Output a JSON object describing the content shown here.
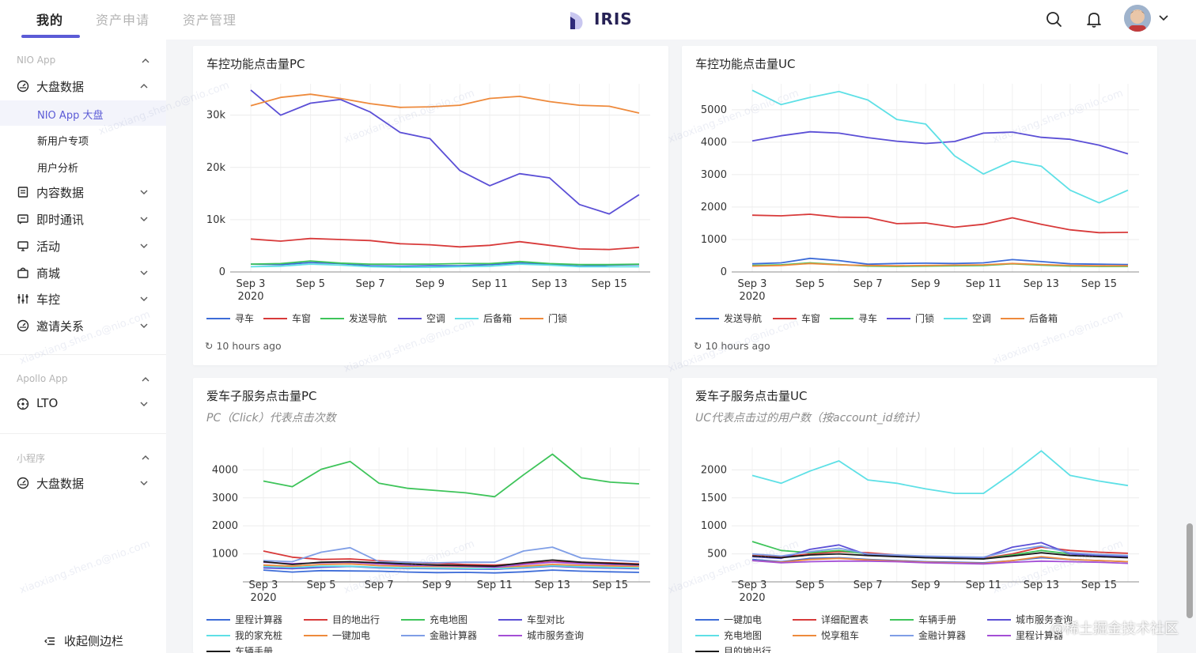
{
  "header": {
    "tabs": [
      {
        "label": "我的"
      },
      {
        "label": "资产申请"
      },
      {
        "label": "资产管理"
      }
    ],
    "brand": "IRIS",
    "icons": [
      "search-icon",
      "bell-icon",
      "avatar",
      "chevron-down-icon"
    ]
  },
  "sidebar": {
    "groups": [
      {
        "label": "NIO App"
      },
      {
        "label": "Apollo App"
      },
      {
        "label": "小程序"
      }
    ],
    "items": [
      {
        "label": "大盘数据",
        "icon": "dashboard-icon"
      },
      {
        "label": "内容数据",
        "icon": "document-icon"
      },
      {
        "label": "即时通讯",
        "icon": "message-icon"
      },
      {
        "label": "活动",
        "icon": "monitor-icon"
      },
      {
        "label": "商城",
        "icon": "shop-icon"
      },
      {
        "label": "车控",
        "icon": "control-icon"
      },
      {
        "label": "邀请关系",
        "icon": "dashboard-icon"
      },
      {
        "label": "LTO",
        "icon": "target-icon"
      },
      {
        "label": "大盘数据",
        "icon": "dashboard-icon"
      }
    ],
    "subitems": [
      {
        "label": "NIO App 大盘"
      },
      {
        "label": "新用户专项"
      },
      {
        "label": "用户分析"
      }
    ],
    "collapse_label": "收起侧边栏"
  },
  "cards": [
    {
      "title": "车控功能点击量PC",
      "subtitle": "",
      "updated": "10 hours ago"
    },
    {
      "title": "车控功能点击量UC",
      "subtitle": "",
      "updated": "10 hours ago"
    },
    {
      "title": "爱车子服务点击量PC",
      "subtitle": "PC（Click）代表点击次数",
      "updated": ""
    },
    {
      "title": "爱车子服务点击量UC",
      "subtitle": "UC代表点击过的用户数（按account_id统计）",
      "updated": ""
    }
  ],
  "watermark": "@稀土掘金技术社区",
  "bg_watermark": "xiaoxiang.shen.o@nio.com",
  "chart_data": [
    {
      "type": "line",
      "title": "车控功能点击量PC",
      "x": [
        "Sep 3",
        "Sep 4",
        "Sep 5",
        "Sep 6",
        "Sep 7",
        "Sep 8",
        "Sep 9",
        "Sep 10",
        "Sep 11",
        "Sep 12",
        "Sep 13",
        "Sep 14",
        "Sep 15",
        "Sep 16"
      ],
      "xticks": [
        {
          "label": "Sep 3",
          "sub": "2020"
        },
        {
          "label": "Sep 5"
        },
        {
          "label": "Sep 7"
        },
        {
          "label": "Sep 9"
        },
        {
          "label": "Sep 11"
        },
        {
          "label": "Sep 13"
        },
        {
          "label": "Sep 15"
        }
      ],
      "yticks": [
        0,
        10000,
        20000,
        30000
      ],
      "ytick_labels": [
        "0",
        "10k",
        "20k",
        "30k"
      ],
      "ylim": [
        0,
        36000
      ],
      "series": [
        {
          "name": "寻车",
          "color": "#3d6cd8",
          "values": [
            1500,
            1400,
            1800,
            1600,
            1200,
            1100,
            1200,
            1200,
            1400,
            1700,
            1500,
            1100,
            1300,
            1400
          ]
        },
        {
          "name": "车窗",
          "color": "#d83a3a",
          "values": [
            6300,
            5900,
            6400,
            6200,
            6000,
            5400,
            5200,
            4800,
            5100,
            5800,
            5100,
            4400,
            4300,
            4700
          ]
        },
        {
          "name": "发送导航",
          "color": "#3ec45a",
          "values": [
            1500,
            1600,
            2100,
            1700,
            1500,
            1500,
            1500,
            1600,
            1600,
            2000,
            1600,
            1400,
            1400,
            1500
          ]
        },
        {
          "name": "空调",
          "color": "#5b4fd6",
          "values": [
            34800,
            30000,
            32300,
            33000,
            30600,
            26700,
            25500,
            19400,
            16500,
            18800,
            18000,
            12900,
            11100,
            14800
          ]
        },
        {
          "name": "后备箱",
          "color": "#5ee0e6",
          "values": [
            1000,
            1100,
            1500,
            1300,
            1000,
            900,
            900,
            1000,
            1100,
            1500,
            1300,
            1000,
            1000,
            1000
          ]
        },
        {
          "name": "门锁",
          "color": "#ee8a3c",
          "values": [
            31800,
            33400,
            34000,
            33200,
            32200,
            31500,
            31600,
            31900,
            33200,
            33600,
            32600,
            31900,
            31700,
            30400
          ]
        }
      ]
    },
    {
      "type": "line",
      "title": "车控功能点击量UC",
      "x": [
        "Sep 3",
        "Sep 4",
        "Sep 5",
        "Sep 6",
        "Sep 7",
        "Sep 8",
        "Sep 9",
        "Sep 10",
        "Sep 11",
        "Sep 12",
        "Sep 13",
        "Sep 14",
        "Sep 15",
        "Sep 16"
      ],
      "xticks": [
        {
          "label": "Sep 3",
          "sub": "2020"
        },
        {
          "label": "Sep 5"
        },
        {
          "label": "Sep 7"
        },
        {
          "label": "Sep 9"
        },
        {
          "label": "Sep 11"
        },
        {
          "label": "Sep 13"
        },
        {
          "label": "Sep 15"
        }
      ],
      "yticks": [
        0,
        1000,
        2000,
        3000,
        4000,
        5000
      ],
      "ytick_labels": [
        "0",
        "1000",
        "2000",
        "3000",
        "4000",
        "5000"
      ],
      "ylim": [
        0,
        5800
      ],
      "series": [
        {
          "name": "发送导航",
          "color": "#3d6cd8",
          "values": [
            250,
            280,
            420,
            350,
            240,
            260,
            270,
            260,
            280,
            380,
            320,
            250,
            240,
            230
          ]
        },
        {
          "name": "车窗",
          "color": "#d83a3a",
          "values": [
            1750,
            1730,
            1780,
            1690,
            1680,
            1490,
            1510,
            1380,
            1470,
            1670,
            1470,
            1300,
            1210,
            1220
          ]
        },
        {
          "name": "寻车",
          "color": "#3ec45a",
          "values": [
            200,
            220,
            280,
            230,
            180,
            170,
            180,
            190,
            200,
            250,
            210,
            180,
            170,
            170
          ]
        },
        {
          "name": "门锁",
          "color": "#5b4fd6",
          "values": [
            4040,
            4200,
            4320,
            4280,
            4140,
            4030,
            3960,
            4020,
            4280,
            4310,
            4150,
            4090,
            3910,
            3640
          ]
        },
        {
          "name": "空调",
          "color": "#5ee0e6",
          "values": [
            5600,
            5160,
            5380,
            5560,
            5300,
            4700,
            4560,
            3580,
            3020,
            3420,
            3260,
            2520,
            2130,
            2520
          ]
        },
        {
          "name": "后备箱",
          "color": "#ee8a3c",
          "values": [
            180,
            200,
            260,
            220,
            200,
            190,
            200,
            210,
            220,
            260,
            230,
            200,
            190,
            190
          ]
        }
      ]
    },
    {
      "type": "line",
      "title": "爱车子服务点击量PC",
      "x": [
        "Sep 3",
        "Sep 4",
        "Sep 5",
        "Sep 6",
        "Sep 7",
        "Sep 8",
        "Sep 9",
        "Sep 10",
        "Sep 11",
        "Sep 12",
        "Sep 13",
        "Sep 14",
        "Sep 15",
        "Sep 16"
      ],
      "xticks": [
        {
          "label": "Sep 3",
          "sub": "2020"
        },
        {
          "label": "Sep 5"
        },
        {
          "label": "Sep 7"
        },
        {
          "label": "Sep 9"
        },
        {
          "label": "Sep 11"
        },
        {
          "label": "Sep 13"
        },
        {
          "label": "Sep 15"
        }
      ],
      "yticks": [
        1000,
        2000,
        3000,
        4000
      ],
      "ytick_labels": [
        "1000",
        "2000",
        "3000",
        "4000"
      ],
      "ylim": [
        0,
        4800
      ],
      "series": [
        {
          "name": "里程计算器",
          "color": "#3d6cd8",
          "values": [
            420,
            350,
            400,
            390,
            380,
            350,
            330,
            340,
            320,
            360,
            420,
            380,
            360,
            340
          ]
        },
        {
          "name": "目的地出行",
          "color": "#d83a3a",
          "values": [
            1100,
            880,
            800,
            820,
            750,
            700,
            660,
            620,
            600,
            650,
            720,
            700,
            680,
            640
          ]
        },
        {
          "name": "充电地图",
          "color": "#3ec45a",
          "values": [
            3600,
            3400,
            4020,
            4300,
            3520,
            3340,
            3260,
            3180,
            3040,
            3820,
            4560,
            3720,
            3560,
            3500
          ]
        },
        {
          "name": "车型对比",
          "color": "#5b4fd6",
          "values": [
            500,
            470,
            520,
            550,
            500,
            480,
            470,
            460,
            450,
            500,
            560,
            510,
            490,
            470
          ]
        },
        {
          "name": "我的家充桩",
          "color": "#5ee0e6",
          "values": [
            560,
            520,
            560,
            560,
            520,
            500,
            490,
            480,
            470,
            520,
            580,
            540,
            520,
            500
          ]
        },
        {
          "name": "一键加电",
          "color": "#ee8a3c",
          "values": [
            600,
            560,
            620,
            640,
            580,
            560,
            550,
            540,
            520,
            560,
            620,
            590,
            570,
            550
          ]
        },
        {
          "name": "金融计算器",
          "color": "#7f9ee6",
          "values": [
            760,
            720,
            1060,
            1220,
            720,
            700,
            680,
            700,
            700,
            1100,
            1240,
            850,
            780,
            720
          ]
        },
        {
          "name": "城市服务查询",
          "color": "#a44fd6",
          "values": [
            700,
            650,
            680,
            700,
            640,
            600,
            580,
            560,
            520,
            620,
            700,
            650,
            620,
            600
          ]
        },
        {
          "name": "车辆手册",
          "color": "#1a1a1a",
          "values": [
            720,
            620,
            700,
            720,
            680,
            640,
            600,
            580,
            560,
            680,
            780,
            700,
            660,
            620
          ]
        }
      ]
    },
    {
      "type": "line",
      "title": "爱车子服务点击量UC",
      "x": [
        "Sep 3",
        "Sep 4",
        "Sep 5",
        "Sep 6",
        "Sep 7",
        "Sep 8",
        "Sep 9",
        "Sep 10",
        "Sep 11",
        "Sep 12",
        "Sep 13",
        "Sep 14",
        "Sep 15",
        "Sep 16"
      ],
      "xticks": [
        {
          "label": "Sep 3",
          "sub": "2020"
        },
        {
          "label": "Sep 5"
        },
        {
          "label": "Sep 7"
        },
        {
          "label": "Sep 9"
        },
        {
          "label": "Sep 11"
        },
        {
          "label": "Sep 13"
        },
        {
          "label": "Sep 15"
        }
      ],
      "yticks": [
        500,
        1000,
        1500,
        2000
      ],
      "ytick_labels": [
        "500",
        "1000",
        "1500",
        "2000"
      ],
      "ylim": [
        0,
        2400
      ],
      "series": [
        {
          "name": "一键加电",
          "color": "#3d6cd8",
          "values": [
            400,
            360,
            420,
            430,
            400,
            380,
            360,
            350,
            340,
            380,
            430,
            400,
            380,
            360
          ]
        },
        {
          "name": "详细配置表",
          "color": "#d83a3a",
          "values": [
            470,
            440,
            500,
            540,
            520,
            480,
            440,
            420,
            420,
            500,
            620,
            560,
            530,
            510
          ]
        },
        {
          "name": "车辆手册",
          "color": "#3ec45a",
          "values": [
            720,
            560,
            520,
            560,
            500,
            460,
            430,
            420,
            410,
            480,
            560,
            500,
            470,
            450
          ]
        },
        {
          "name": "城市服务查询",
          "color": "#5b4fd6",
          "values": [
            450,
            420,
            580,
            660,
            480,
            460,
            440,
            430,
            430,
            620,
            700,
            500,
            470,
            450
          ]
        },
        {
          "name": "充电地图",
          "color": "#5ee0e6",
          "values": [
            1900,
            1760,
            1980,
            2160,
            1820,
            1760,
            1660,
            1580,
            1580,
            1940,
            2340,
            1900,
            1800,
            1720
          ]
        },
        {
          "name": "悦享租车",
          "color": "#ee8a3c",
          "values": [
            380,
            350,
            400,
            420,
            390,
            370,
            350,
            340,
            330,
            380,
            450,
            400,
            380,
            360
          ]
        },
        {
          "name": "金融计算器",
          "color": "#7f9ee6",
          "values": [
            500,
            460,
            540,
            600,
            500,
            480,
            460,
            450,
            440,
            560,
            640,
            520,
            490,
            470
          ]
        },
        {
          "name": "里程计算器",
          "color": "#a44fd6",
          "values": [
            380,
            340,
            360,
            370,
            370,
            360,
            340,
            330,
            320,
            350,
            370,
            360,
            350,
            330
          ]
        },
        {
          "name": "目的地出行",
          "color": "#1a1a1a",
          "values": [
            460,
            430,
            480,
            500,
            470,
            450,
            430,
            420,
            410,
            460,
            520,
            470,
            450,
            430
          ]
        }
      ]
    }
  ]
}
